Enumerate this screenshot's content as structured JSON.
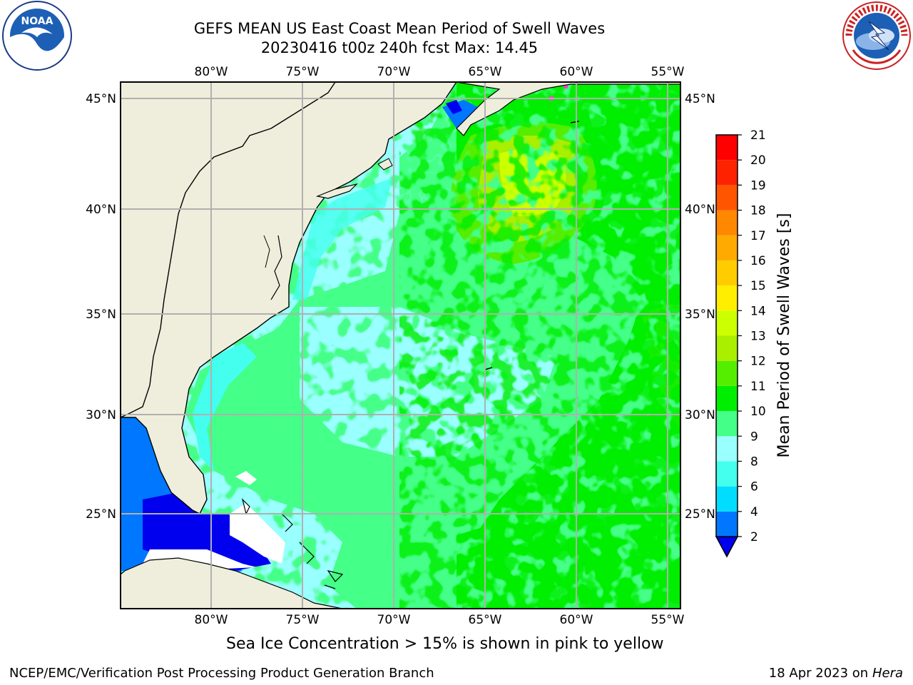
{
  "title_line1": "GEFS MEAN US East Coast Mean Period of Swell Waves",
  "title_line2": "20230416 t00z 240h fcst   Max: 14.45",
  "logos": {
    "left": "NOAA",
    "right": "NATIONAL WEATHER SERVICE"
  },
  "map": {
    "lon_ticks": [
      "80°W",
      "75°W",
      "70°W",
      "65°W",
      "60°W",
      "55°W"
    ],
    "lat_ticks": [
      "45°N",
      "40°N",
      "35°N",
      "30°N",
      "25°N"
    ],
    "colors": {
      "land": "#efeedc",
      "grid": "#b0b0b0",
      "coast": "#000000"
    }
  },
  "colorbar": {
    "label": "Mean Period of Swell Waves [s]",
    "ticks": [
      "2",
      "4",
      "6",
      "8",
      "9",
      "10",
      "11",
      "12",
      "13",
      "14",
      "15",
      "16",
      "17",
      "18",
      "19",
      "20",
      "21"
    ],
    "colors": [
      "#0000ee",
      "#0077ff",
      "#00ddff",
      "#44ffee",
      "#99ffff",
      "#44ff88",
      "#00ee00",
      "#55ee00",
      "#aaee00",
      "#ccff00",
      "#ffee00",
      "#ffcc00",
      "#ffaa00",
      "#ff8800",
      "#ff5500",
      "#ff2200",
      "#ff0000"
    ]
  },
  "ice_note": "Sea Ice Concentration > 15% is shown in pink to yellow",
  "footer_left": "NCEP/EMC/Verification Post Processing Product Generation Branch",
  "footer_date": "18 Apr 2023 on",
  "footer_machine": "Hera"
}
